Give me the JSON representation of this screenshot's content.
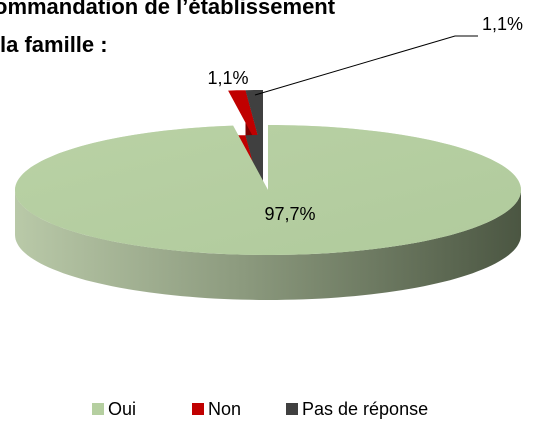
{
  "chart_data": {
    "type": "pie",
    "title_lines": [
      "ommandation de l’établissement",
      "la famille :"
    ],
    "categories": [
      "Oui",
      "Non",
      "Pas de réponse"
    ],
    "values": [
      97.7,
      1.1,
      1.1
    ],
    "value_labels": [
      "97,7%",
      "1,1%",
      "1,1%"
    ],
    "colors": [
      "#b5cfa0",
      "#c00000",
      "#404040"
    ],
    "legend": "bottom"
  }
}
